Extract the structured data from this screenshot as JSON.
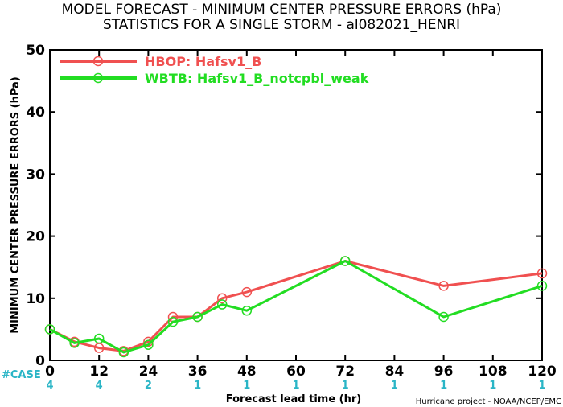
{
  "title_line1": "MODEL FORECAST - MINIMUM CENTER PRESSURE ERRORS (hPa)",
  "title_line2": "STATISTICS FOR A SINGLE STORM - al082021_HENRI",
  "credit": "Hurricane project - NOAA/NCEP/EMC",
  "case_label": "#CASE",
  "chart_data": {
    "type": "line",
    "xlabel": "Forecast lead time (hr)",
    "ylabel": "MINIMUM CENTER PRESSURE ERRORS (hPa)",
    "xlim": [
      0,
      120
    ],
    "ylim": [
      0,
      50
    ],
    "x_ticks": [
      0,
      12,
      24,
      36,
      48,
      60,
      72,
      84,
      96,
      108,
      120
    ],
    "y_ticks": [
      0,
      10,
      20,
      30,
      40,
      50
    ],
    "grid": false,
    "legend_position": "top-left",
    "case_counts": [
      {
        "x": 0,
        "n": "4"
      },
      {
        "x": 12,
        "n": "4"
      },
      {
        "x": 24,
        "n": "2"
      },
      {
        "x": 36,
        "n": "1"
      },
      {
        "x": 48,
        "n": "1"
      },
      {
        "x": 60,
        "n": "1"
      },
      {
        "x": 72,
        "n": "1"
      },
      {
        "x": 84,
        "n": "1"
      },
      {
        "x": 96,
        "n": "1"
      },
      {
        "x": 108,
        "n": "1"
      },
      {
        "x": 120,
        "n": "1"
      }
    ],
    "series": [
      {
        "name": "HBOP: Hafsv1_B",
        "color": "#f05050",
        "x": [
          0,
          6,
          12,
          18,
          24,
          30,
          36,
          42,
          48,
          72,
          96,
          120
        ],
        "y": [
          5,
          3,
          2,
          1.5,
          3,
          7,
          7,
          10,
          11,
          16,
          12,
          14
        ]
      },
      {
        "name": "WBTB: Hafsv1_B_notcpbl_weak",
        "color": "#22dd22",
        "x": [
          0,
          6,
          12,
          18,
          24,
          30,
          36,
          42,
          48,
          72,
          96,
          120
        ],
        "y": [
          5,
          2.8,
          3.5,
          1.3,
          2.5,
          6.2,
          7,
          9,
          8,
          16,
          7,
          12
        ]
      }
    ]
  }
}
